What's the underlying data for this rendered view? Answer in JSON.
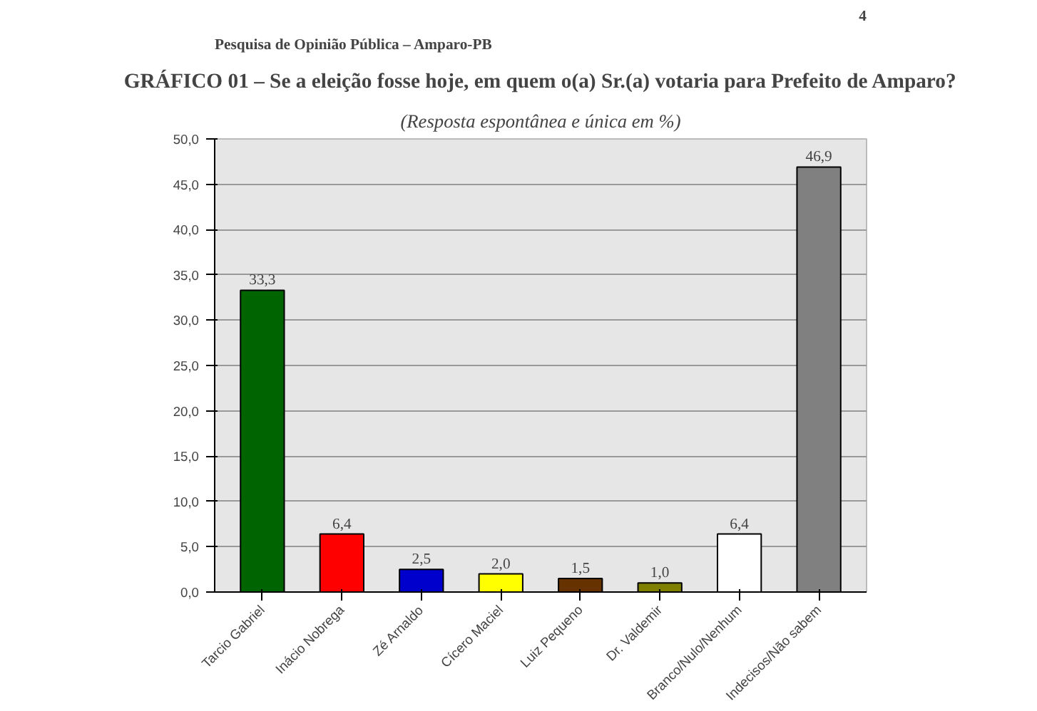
{
  "chart_data": {
    "type": "bar",
    "title": "GRÁFICO 01 – Se a eleição fosse hoje, em quem o(a) Sr.(a) votaria para Prefeito de Amparo?",
    "subtitle": "(Resposta espontânea e única em %)",
    "annotations": [
      "Pesquisa de Opinião Pública – Amparo-PB",
      "4"
    ],
    "categories": [
      "Tarcio Gabriel",
      "Inácio Nobrega",
      "Zé Arnaldo",
      "Cícero Maciel",
      "Luiz Pequeno",
      "Dr. Valdemir",
      "Branco/Nulo/Nenhum",
      "Indecisos/Não sabem"
    ],
    "values": [
      33.3,
      6.4,
      2.5,
      2.0,
      1.5,
      1.0,
      6.4,
      46.9
    ],
    "value_labels": [
      "33,3",
      "6,4",
      "2,5",
      "2,0",
      "1,5",
      "1,0",
      "6,4",
      "46,9"
    ],
    "colors": [
      "#006400",
      "#ff0000",
      "#0000cc",
      "#ffff00",
      "#663300",
      "#808000",
      "#ffffff",
      "#808080"
    ],
    "ylim": [
      0,
      50
    ],
    "yticks": [
      {
        "value": 0,
        "label": "0,0"
      },
      {
        "value": 5,
        "label": "5,0"
      },
      {
        "value": 10,
        "label": "10,0"
      },
      {
        "value": 15,
        "label": "15,0"
      },
      {
        "value": 20,
        "label": "20,0"
      },
      {
        "value": 25,
        "label": "25,0"
      },
      {
        "value": 30,
        "label": "30,0"
      },
      {
        "value": 35,
        "label": "35,0"
      },
      {
        "value": 40,
        "label": "40,0"
      },
      {
        "value": 45,
        "label": "45,0"
      },
      {
        "value": 50,
        "label": "50,0"
      }
    ],
    "grid": "y"
  }
}
